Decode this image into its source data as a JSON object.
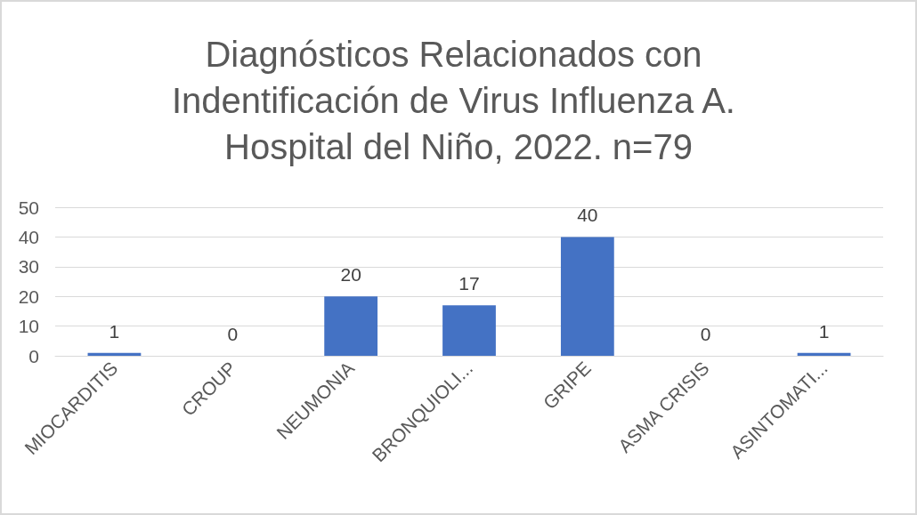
{
  "chart_data": {
    "type": "bar",
    "title": "Diagnósticos Relacionados con Indentificación de Virus Influenza A. Hospital del Niño, 2022. n=79",
    "categories": [
      "MIOCARDITIS",
      "CROUP",
      "NEUMONIA",
      "BRONQUIOLI...",
      "GRIPE",
      "ASMA CRISIS",
      "ASINTOMATI..."
    ],
    "values": [
      1,
      0,
      20,
      17,
      40,
      0,
      1
    ],
    "color": "#4472c4",
    "ylim": [
      0,
      50
    ],
    "yticks": [
      0,
      10,
      20,
      30,
      40,
      50
    ],
    "grid": "y",
    "data_labels": true
  }
}
